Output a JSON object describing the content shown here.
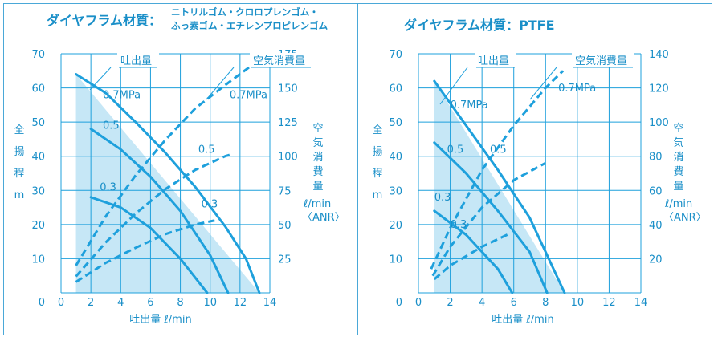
{
  "colors": {
    "accent": "#1ea0dc",
    "fill": "#c6e7f6",
    "grid": "#1ea0dc",
    "text": "#1a8fc8",
    "frame": "#4aa8d8",
    "background": "#ffffff"
  },
  "chart_data": [
    {
      "type": "line",
      "title": "ダイヤフラム材質：",
      "title_material_lines": [
        "ニトリルゴム・クロロプレンゴム・",
        "ふっ素ゴム・エチレンプロピレンゴム"
      ],
      "xlabel": "吐出量 ℓ/min",
      "ylabel_chars": [
        "全",
        "揚",
        "程",
        "m"
      ],
      "y2label_chars": [
        "空",
        "気",
        "消",
        "費",
        "量"
      ],
      "y2unit_line1": "ℓ/min",
      "y2unit_line2": "〈ANR〉",
      "xlim": [
        0,
        14
      ],
      "ylim": [
        0,
        70
      ],
      "y2lim": [
        0,
        175
      ],
      "x_ticks": [
        0,
        2,
        4,
        6,
        8,
        10,
        12,
        14
      ],
      "y_ticks": [
        10,
        20,
        30,
        40,
        50,
        60,
        70
      ],
      "y2_ticks": [
        25,
        50,
        75,
        100,
        125,
        150,
        175
      ],
      "grid": true,
      "legend": {
        "flow": "吐出量",
        "air": "空気消費量"
      },
      "operating_region": [
        [
          1,
          0
        ],
        [
          1,
          64
        ],
        [
          13.3,
          0
        ]
      ],
      "flow_series": [
        {
          "name": "0.7MPa",
          "points": [
            [
              1,
              64
            ],
            [
              3,
              58.5
            ],
            [
              5,
              50
            ],
            [
              7,
              41
            ],
            [
              9,
              31
            ],
            [
              11,
              19.5
            ],
            [
              12.4,
              10
            ],
            [
              13.3,
              0
            ]
          ]
        },
        {
          "name": "0.5",
          "points": [
            [
              2,
              48
            ],
            [
              4,
              42
            ],
            [
              6,
              34
            ],
            [
              8,
              24
            ],
            [
              10,
              11
            ],
            [
              11.2,
              0
            ]
          ]
        },
        {
          "name": "0.3",
          "points": [
            [
              2,
              28
            ],
            [
              4,
              25
            ],
            [
              6,
              19
            ],
            [
              8,
              10
            ],
            [
              9.8,
              0
            ]
          ]
        }
      ],
      "air_series": [
        {
          "name": "0.7MPa",
          "points": [
            [
              1,
              20
            ],
            [
              3,
              56
            ],
            [
              5,
              86
            ],
            [
              7,
              112
            ],
            [
              9,
              135
            ],
            [
              11,
              152
            ],
            [
              12.6,
              165
            ]
          ]
        },
        {
          "name": "0.5",
          "points": [
            [
              1,
              12
            ],
            [
              3,
              37
            ],
            [
              5,
              58
            ],
            [
              7,
              76
            ],
            [
              9,
              90
            ],
            [
              11,
              100
            ],
            [
              11.3,
              101
            ]
          ]
        },
        {
          "name": "0.3",
          "points": [
            [
              1,
              8
            ],
            [
              3,
              22
            ],
            [
              5,
              33
            ],
            [
              7,
              43
            ],
            [
              9,
              50
            ],
            [
              10.3,
              53
            ]
          ]
        }
      ],
      "flow_labels": [
        {
          "text": "0.7MPa",
          "x": 2.8,
          "y": 57
        },
        {
          "text": "0.5",
          "x": 2.8,
          "y": 48
        },
        {
          "text": "0.3",
          "x": 2.6,
          "y": 30
        }
      ],
      "air_labels": [
        {
          "text": "0.7MPa",
          "x": 11.3,
          "y": 57
        },
        {
          "text": "0.5",
          "x": 9.2,
          "y": 41
        },
        {
          "text": "0.3",
          "x": 9.4,
          "y": 25
        }
      ]
    },
    {
      "type": "line",
      "title": "ダイヤフラム材質：PTFE",
      "title_material_lines": [],
      "xlabel": "吐出量 ℓ/min",
      "ylabel_chars": [
        "全",
        "揚",
        "程",
        "m"
      ],
      "y2label_chars": [
        "空",
        "気",
        "消",
        "費",
        "量"
      ],
      "y2unit_line1": "ℓ/min",
      "y2unit_line2": "〈ANR〉",
      "xlim": [
        0,
        14
      ],
      "ylim": [
        0,
        70
      ],
      "y2lim": [
        0,
        140
      ],
      "x_ticks": [
        0,
        2,
        4,
        6,
        8,
        10,
        12,
        14
      ],
      "y_ticks": [
        10,
        20,
        30,
        40,
        50,
        60,
        70
      ],
      "y2_ticks": [
        20,
        40,
        60,
        80,
        100,
        120,
        140
      ],
      "grid": true,
      "legend": {
        "flow": "吐出量",
        "air": "空気消費量"
      },
      "operating_region": [
        [
          1,
          0
        ],
        [
          1,
          62
        ],
        [
          9.2,
          0
        ]
      ],
      "flow_series": [
        {
          "name": "0.7MPa",
          "points": [
            [
              1,
              62
            ],
            [
              3,
              49
            ],
            [
              5,
              36
            ],
            [
              7,
              22
            ],
            [
              9.2,
              0
            ]
          ]
        },
        {
          "name": "0.5",
          "points": [
            [
              1,
              44
            ],
            [
              3,
              35
            ],
            [
              5,
              24
            ],
            [
              7,
              12
            ],
            [
              8.1,
              0
            ]
          ]
        },
        {
          "name": "0.3",
          "points": [
            [
              1,
              24
            ],
            [
              3,
              17
            ],
            [
              5,
              7
            ],
            [
              5.9,
              0
            ]
          ]
        }
      ],
      "air_series": [
        {
          "name": "0.7MPa",
          "points": [
            [
              0.8,
              14
            ],
            [
              2,
              38
            ],
            [
              4,
              72
            ],
            [
              6,
              98
            ],
            [
              8,
              120
            ],
            [
              9.1,
              130
            ]
          ]
        },
        {
          "name": "0.5",
          "points": [
            [
              0.9,
              10
            ],
            [
              2,
              27
            ],
            [
              4,
              50
            ],
            [
              6,
              66
            ],
            [
              8,
              76
            ]
          ]
        },
        {
          "name": "0.3",
          "points": [
            [
              1,
              8
            ],
            [
              2,
              16
            ],
            [
              4,
              27
            ],
            [
              5.8,
              35
            ]
          ]
        }
      ],
      "flow_labels": [
        {
          "text": "0.7MPa",
          "x": 2.0,
          "y": 54
        },
        {
          "text": "0.5",
          "x": 1.8,
          "y": 41
        },
        {
          "text": "0.3",
          "x": 1.0,
          "y": 27
        }
      ],
      "air_labels": [
        {
          "text": "0.7MPa",
          "x": 8.8,
          "y": 59
        },
        {
          "text": "0.5",
          "x": 4.5,
          "y": 41
        },
        {
          "text": "0.3",
          "x": 2.0,
          "y": 19
        }
      ]
    }
  ]
}
